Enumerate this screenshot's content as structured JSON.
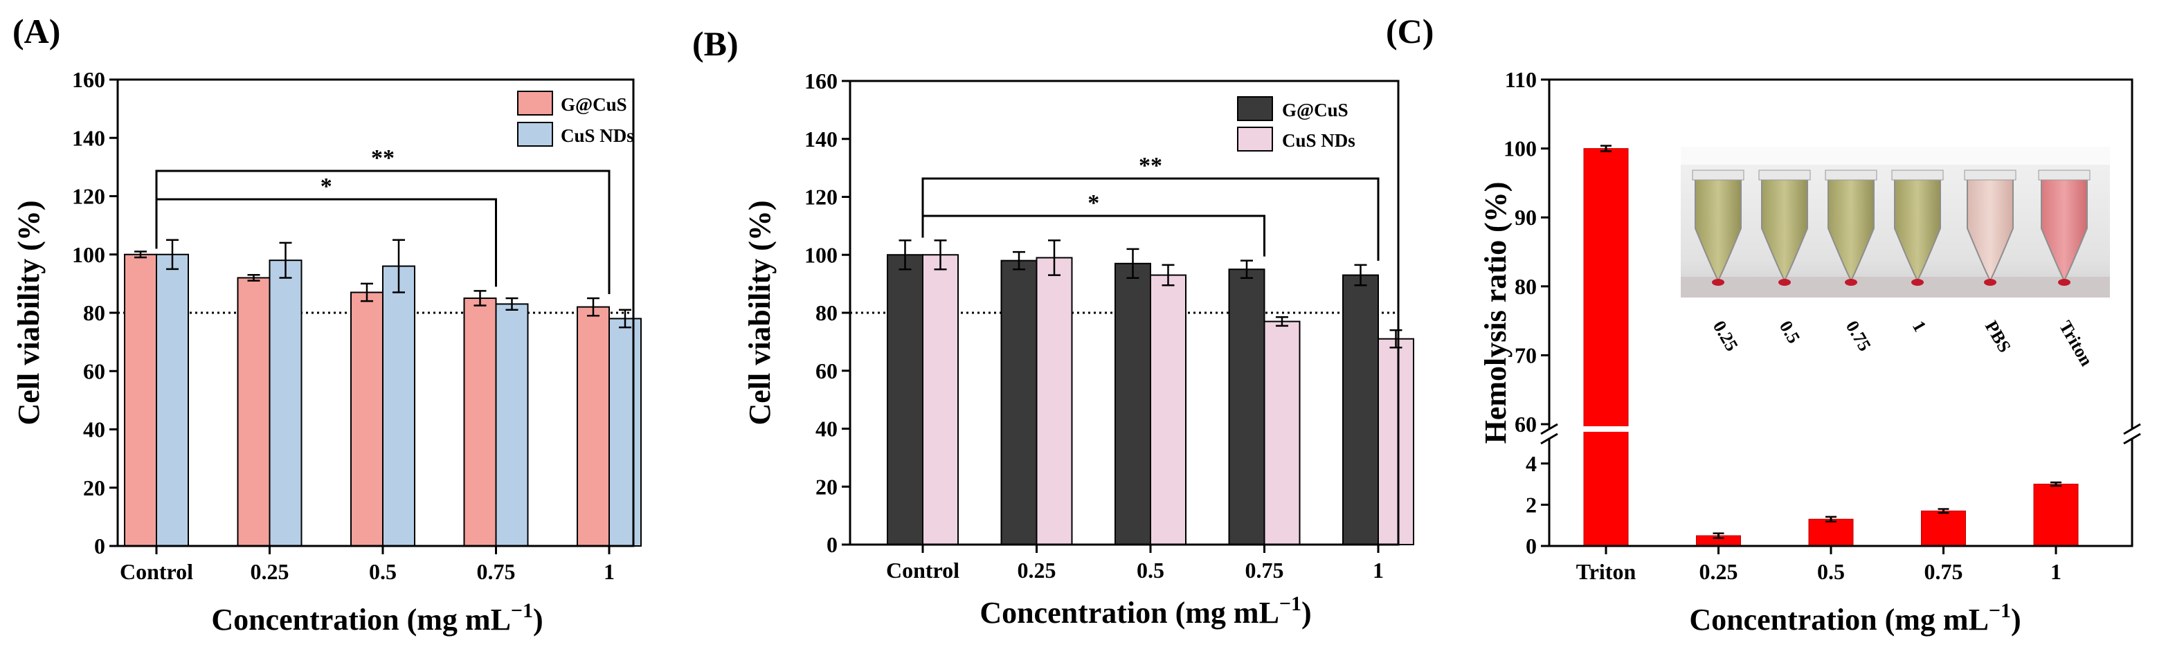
{
  "panels": {
    "a": {
      "label": "(A)"
    },
    "b": {
      "label": "(B)"
    },
    "c": {
      "label": "(C)"
    }
  },
  "colors": {
    "a_gcus": "#f4a09b",
    "a_cusnd": "#b6cfe7",
    "b_gcus": "#3a3a3a",
    "b_cusnd": "#efd3e1",
    "c_bar": "#ff0000"
  },
  "chart_data": [
    {
      "id": "A",
      "type": "bar",
      "title": "",
      "xlabel": "Concentration (mg mL",
      "xlabel_sup": "−1",
      "xlabel_end": ")",
      "ylabel": "Cell viability (%)",
      "ylim": [
        0,
        160
      ],
      "yticks": [
        "0",
        "20",
        "40",
        "60",
        "80",
        "100",
        "120",
        "140",
        "160"
      ],
      "reference_line": 80,
      "categories": [
        "Control",
        "0.25",
        "0.5",
        "0.75",
        "1"
      ],
      "series": [
        {
          "name": "G@CuS",
          "values": [
            100,
            92,
            87,
            85,
            82
          ],
          "errors": [
            1,
            1,
            3,
            2.5,
            3
          ]
        },
        {
          "name": "CuS NDs",
          "values": [
            100,
            98,
            96,
            83,
            78
          ],
          "errors": [
            5,
            6,
            9,
            2,
            3
          ]
        }
      ],
      "legend_position": "top-right",
      "significance": [
        {
          "label": "*",
          "from": "Control",
          "to": "0.75"
        },
        {
          "label": "**",
          "from": "Control",
          "to": "1"
        }
      ]
    },
    {
      "id": "B",
      "type": "bar",
      "title": "",
      "xlabel": "Concentration (mg mL",
      "xlabel_sup": "−1",
      "xlabel_end": ")",
      "ylabel": "Cell viability (%)",
      "ylim": [
        0,
        160
      ],
      "yticks": [
        "0",
        "20",
        "40",
        "60",
        "80",
        "100",
        "120",
        "140",
        "160"
      ],
      "reference_line": 80,
      "categories": [
        "Control",
        "0.25",
        "0.5",
        "0.75",
        "1"
      ],
      "series": [
        {
          "name": "G@CuS",
          "values": [
            100,
            98,
            97,
            95,
            93
          ],
          "errors": [
            5,
            3,
            5,
            3,
            3.5
          ]
        },
        {
          "name": "CuS NDs",
          "values": [
            100,
            99,
            93,
            77,
            71
          ],
          "errors": [
            5,
            6,
            3.5,
            1.5,
            3
          ]
        }
      ],
      "legend_position": "top-right",
      "significance": [
        {
          "label": "*",
          "from": "Control",
          "to": "0.75"
        },
        {
          "label": "**",
          "from": "Control",
          "to": "1"
        }
      ]
    },
    {
      "id": "C",
      "type": "bar",
      "title": "",
      "xlabel": "Concentration (mg mL",
      "xlabel_sup": "−1",
      "xlabel_end": ")",
      "ylabel": "Hemolysis ratio  (%)",
      "y_axis_break": {
        "lower": [
          0,
          5
        ],
        "upper": [
          60,
          110
        ]
      },
      "yticks_lower": [
        "0",
        "2",
        "4"
      ],
      "yticks_upper": [
        "60",
        "70",
        "80",
        "90",
        "100",
        "110"
      ],
      "categories": [
        "Triton",
        "0.25",
        "0.5",
        "0.75",
        "1"
      ],
      "values": [
        100,
        0.5,
        1.3,
        1.7,
        3.0
      ],
      "errors": [
        0.3,
        0.08,
        0.08,
        0.06,
        0.05
      ],
      "inset_photo_labels": [
        "0.25",
        "0.5",
        "0.75",
        "1",
        "PBS",
        "Triton"
      ]
    }
  ]
}
